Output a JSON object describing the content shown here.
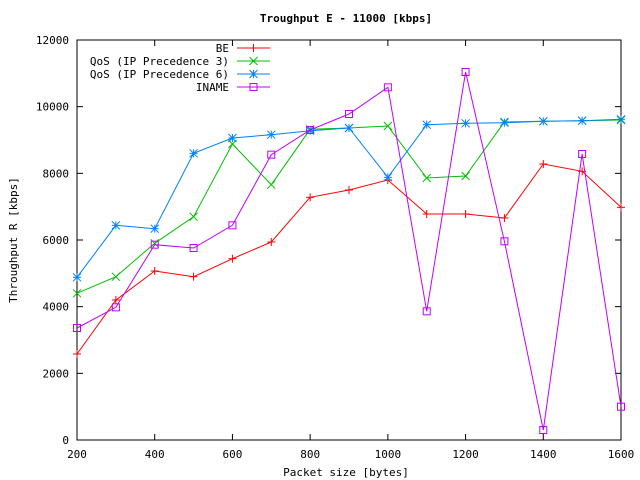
{
  "chart_data": {
    "type": "line",
    "title": "Troughput E - 11000 [kbps]",
    "xlabel": "Packet size [bytes]",
    "ylabel": "Throughput R [kbps]",
    "xlim": [
      200,
      1600
    ],
    "ylim": [
      0,
      12000
    ],
    "x_ticks": [
      200,
      400,
      600,
      800,
      1000,
      1200,
      1400,
      1600
    ],
    "y_ticks": [
      0,
      2000,
      4000,
      6000,
      8000,
      10000,
      12000
    ],
    "x_tick_labels": [
      "200",
      "400",
      "600",
      "800",
      "1000",
      "1200",
      "1400",
      "1600"
    ],
    "y_tick_labels": [
      "0",
      "2000",
      "4000",
      "6000",
      "8000",
      "10000",
      "12000"
    ],
    "grid": false,
    "legend_position": "top-right",
    "series": [
      {
        "name": "BE",
        "color": "#ff0000",
        "marker": "plus",
        "x": [
          200,
          300,
          400,
          500,
          600,
          700,
          800,
          900,
          1000,
          1100,
          1200,
          1300,
          1400,
          1500,
          1600
        ],
        "y": [
          2580,
          4200,
          5070,
          4900,
          5440,
          5940,
          7280,
          7500,
          7800,
          6780,
          6780,
          6660,
          8280,
          8060,
          6980
        ]
      },
      {
        "name": "QoS (IP Precedence 3)",
        "color": "#00c000",
        "marker": "cross",
        "x": [
          200,
          300,
          400,
          500,
          600,
          700,
          800,
          900,
          1000,
          1100,
          1200,
          1300,
          1400,
          1500,
          1600
        ],
        "y": [
          4400,
          4900,
          5900,
          6700,
          8880,
          7660,
          9320,
          9360,
          9420,
          7860,
          7920,
          9540,
          9560,
          9580,
          9600
        ]
      },
      {
        "name": "QoS (IP Precedence 6)",
        "color": "#0080ff",
        "marker": "star",
        "x": [
          200,
          300,
          400,
          500,
          600,
          700,
          800,
          900,
          1000,
          1100,
          1200,
          1300,
          1400,
          1500,
          1600
        ],
        "y": [
          4880,
          6440,
          6340,
          8600,
          9060,
          9160,
          9280,
          9360,
          7880,
          9460,
          9500,
          9520,
          9560,
          9580,
          9620
        ]
      },
      {
        "name": "INAME",
        "color": "#c000ff",
        "marker": "box",
        "x": [
          200,
          300,
          400,
          500,
          600,
          700,
          800,
          900,
          1000,
          1100,
          1200,
          1300,
          1400,
          1500,
          1600
        ],
        "y": [
          3360,
          3980,
          5860,
          5760,
          6440,
          8560,
          9300,
          9780,
          10580,
          3860,
          11040,
          5960,
          300,
          8580,
          1000
        ]
      }
    ]
  }
}
